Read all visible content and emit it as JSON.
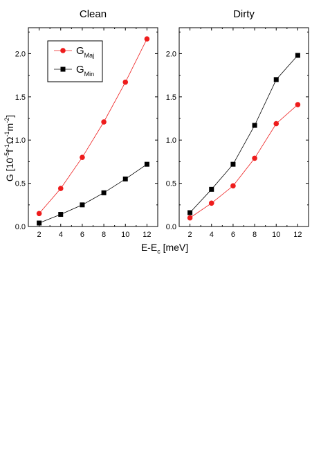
{
  "figure": {
    "ylabel": {
      "base": "G [10",
      "sup1": "-5",
      "mid1": "f",
      "sup2": "-1",
      "mid2": "Ω",
      "sup3": "-1",
      "mid3": "m",
      "sup4": "-2",
      "end": "]"
    },
    "xlabel": {
      "base": "E-E",
      "sub": "c",
      "end": " [meV]"
    }
  },
  "legend": [
    {
      "base": "G",
      "sub": "Maj",
      "color": "#ee1c1c",
      "marker": "circle"
    },
    {
      "base": "G",
      "sub": "Min",
      "color": "#000000",
      "marker": "square"
    }
  ],
  "chart_data": [
    {
      "type": "line",
      "title": "Clean",
      "x": [
        2,
        4,
        6,
        8,
        10,
        12
      ],
      "xticks": [
        "2",
        "4",
        "6",
        "8",
        "10",
        "12"
      ],
      "xlim": [
        1,
        13
      ],
      "ylim": [
        0,
        2.3
      ],
      "yticks": [
        "0.0",
        "0.5",
        "1.0",
        "1.5",
        "2.0"
      ],
      "series": [
        {
          "name": "G_Maj",
          "color": "#ee1c1c",
          "marker": "circle",
          "values": [
            0.15,
            0.44,
            0.8,
            1.21,
            1.67,
            2.17
          ]
        },
        {
          "name": "G_Min",
          "color": "#000000",
          "marker": "square",
          "values": [
            0.04,
            0.14,
            0.25,
            0.39,
            0.55,
            0.72
          ]
        }
      ]
    },
    {
      "type": "line",
      "title": "Dirty",
      "x": [
        2,
        4,
        6,
        8,
        10,
        12
      ],
      "xticks": [
        "2",
        "4",
        "6",
        "8",
        "10",
        "12"
      ],
      "xlim": [
        1,
        13
      ],
      "ylim": [
        0,
        2.3
      ],
      "yticks": [
        "0.0",
        "0.5",
        "1.0",
        "1.5",
        "2.0"
      ],
      "series": [
        {
          "name": "G_Maj",
          "color": "#ee1c1c",
          "marker": "circle",
          "values": [
            0.1,
            0.27,
            0.47,
            0.79,
            1.19,
            1.41
          ]
        },
        {
          "name": "G_Min",
          "color": "#000000",
          "marker": "square",
          "values": [
            0.16,
            0.43,
            0.72,
            1.17,
            1.7,
            1.98
          ]
        }
      ]
    }
  ]
}
